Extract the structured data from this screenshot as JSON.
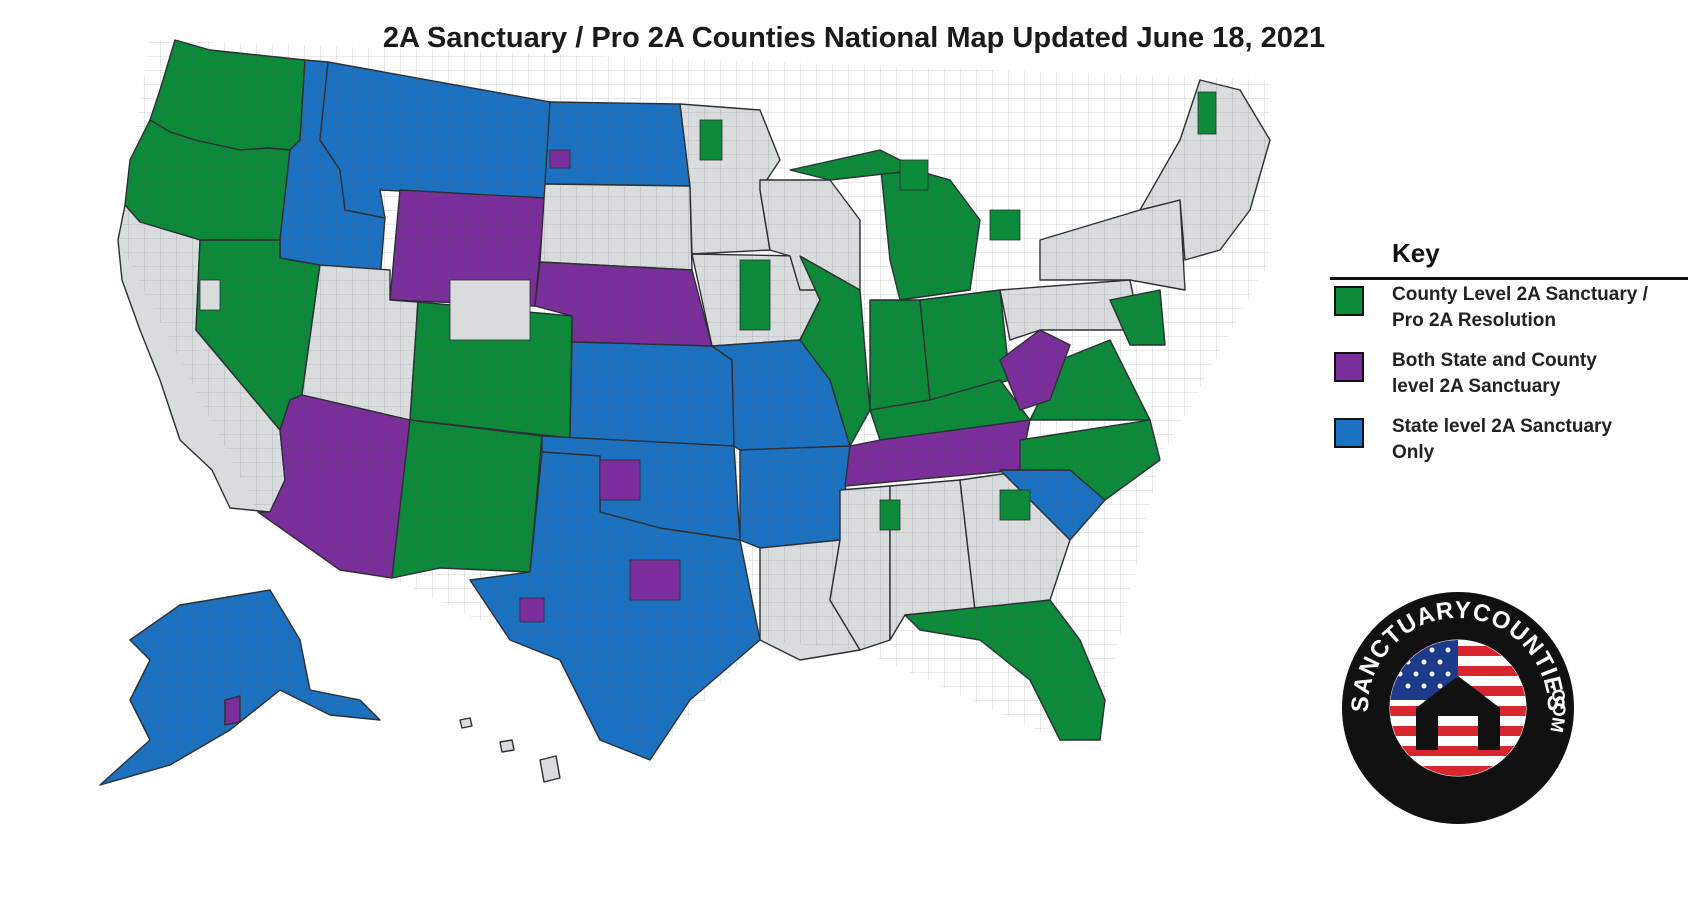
{
  "title": "2A Sanctuary / Pro 2A Counties National Map Updated June 18, 2021",
  "colors": {
    "county_level": "#0b8a3a",
    "state_and_county": "#7b2d9b",
    "state_only": "#1b72c2",
    "no_status": "#d9dcdd",
    "borders": "#2b2f33"
  },
  "legend": {
    "title": "Key",
    "items": [
      {
        "line1": "County Level 2A Sanctuary /",
        "line2": "Pro 2A Resolution",
        "color": "#0b8a3a"
      },
      {
        "line1": "Both State and County",
        "line2": "level 2A Sanctuary",
        "color": "#7b2d9b"
      },
      {
        "line1": "State level 2A Sanctuary",
        "line2": "Only",
        "color": "#1b72c2"
      }
    ]
  },
  "badge": {
    "text_top": "SANCTUARYCOUNTIES",
    "text_bottom": "SANCTUARYCOUNTIES.COM",
    "icon": "flag-house-icon"
  }
}
